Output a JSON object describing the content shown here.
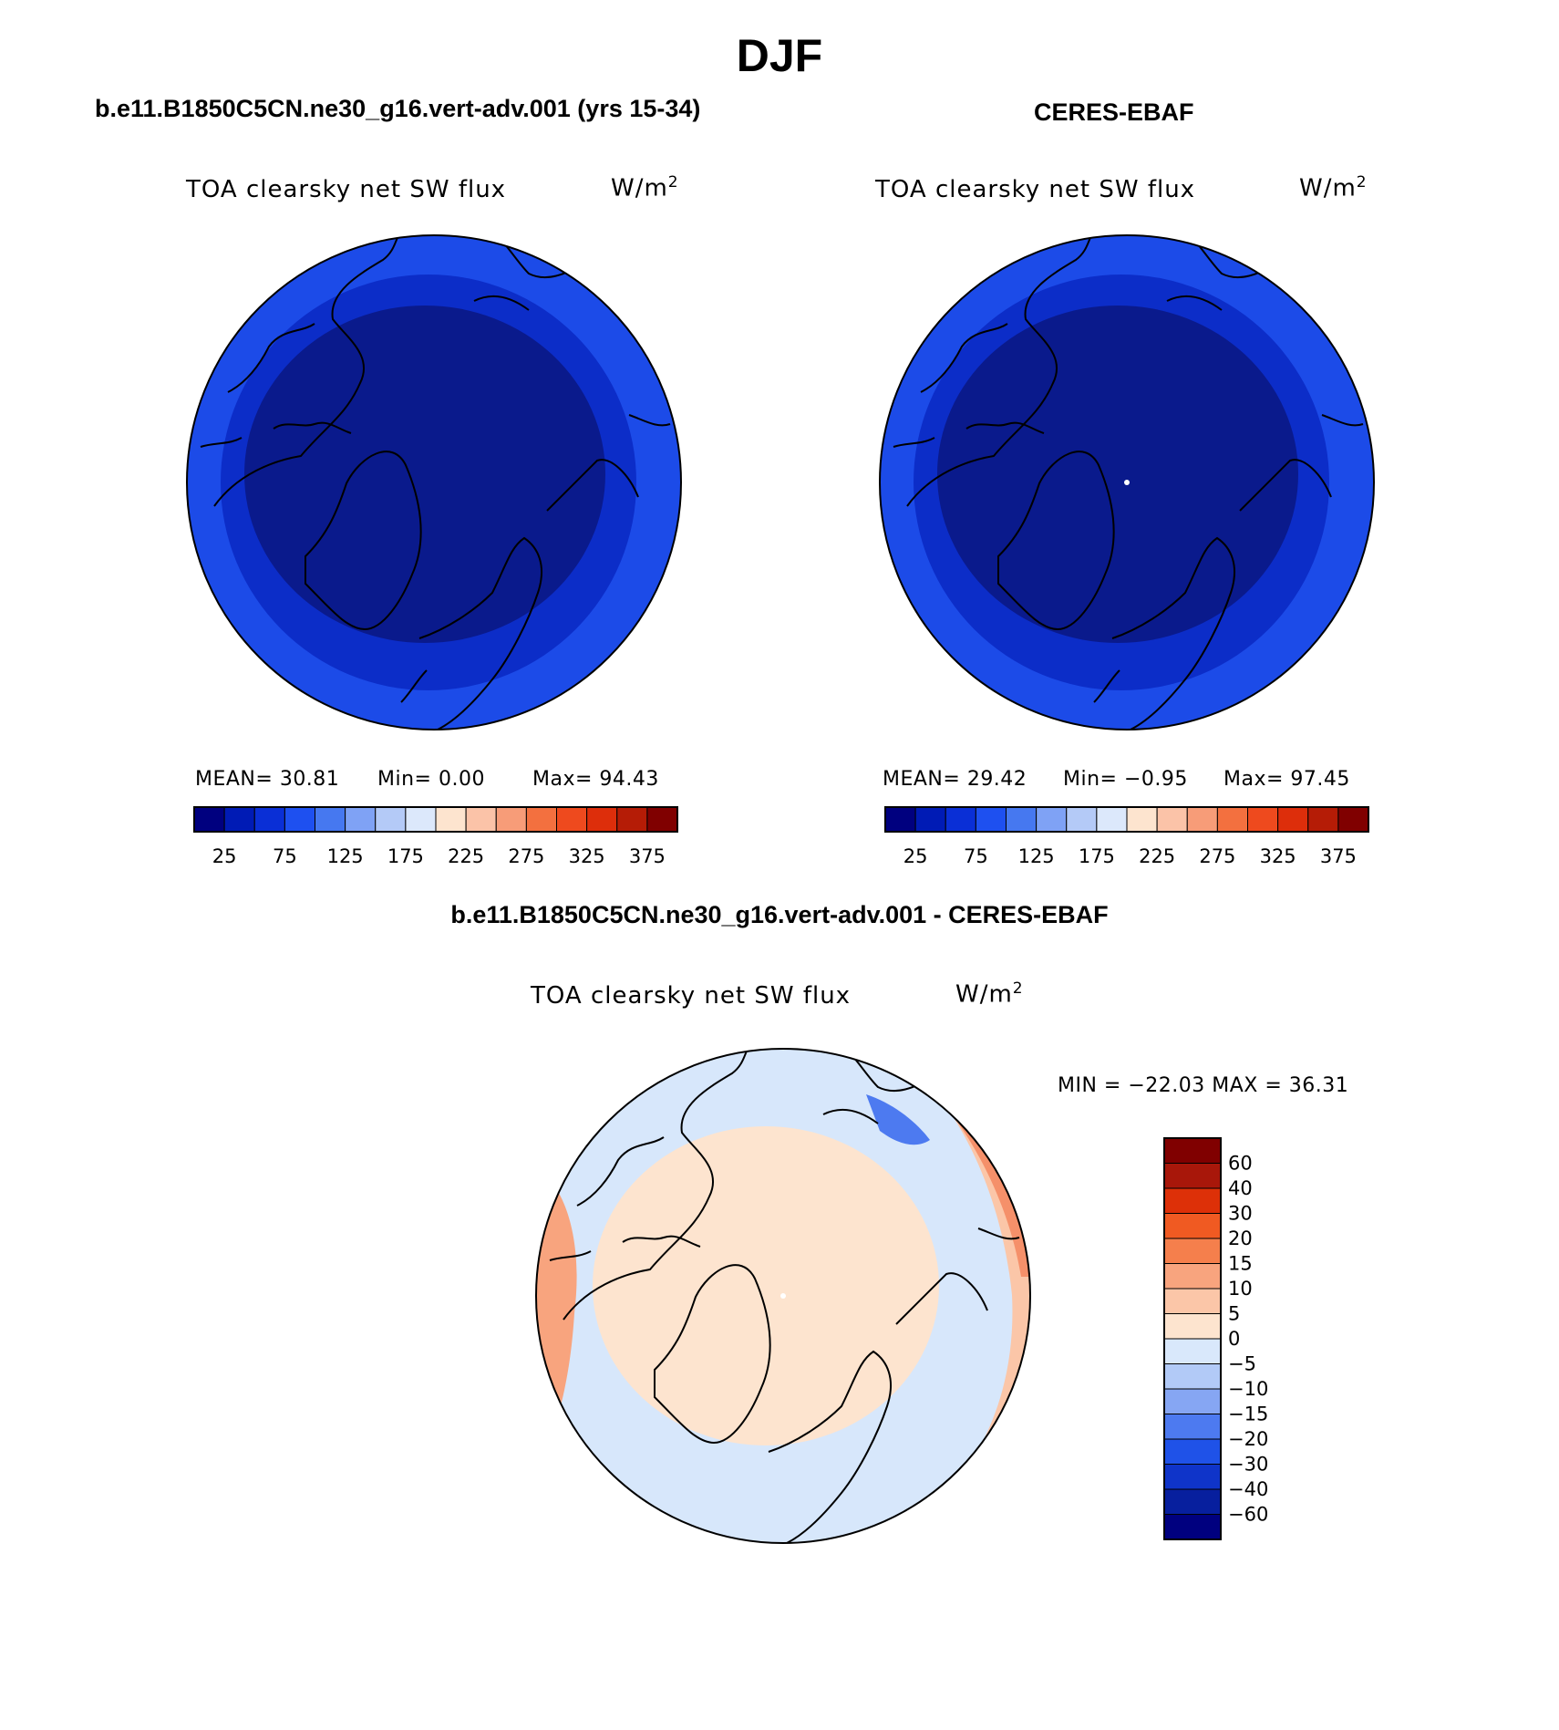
{
  "title": "DJF",
  "panels": [
    {
      "case": "b.e11.B1850C5CN.ne30_g16.vert-adv.001 (yrs 15-34)",
      "variable": "TOA clearsky net SW flux",
      "units_base": "W/m",
      "units_exp": "2",
      "mean": "MEAN=   30.81",
      "min": "Min=    0.00",
      "max": "Max=   94.43",
      "colorbar_labels": [
        "25",
        "75",
        "125",
        "175",
        "225",
        "275",
        "325",
        "375"
      ]
    },
    {
      "case": "CERES-EBAF",
      "variable": "TOA clearsky net SW flux",
      "units_base": "W/m",
      "units_exp": "2",
      "mean": "MEAN=   29.42",
      "min": "Min=   −0.95",
      "max": "Max=   97.45",
      "colorbar_labels": [
        "25",
        "75",
        "125",
        "175",
        "225",
        "275",
        "325",
        "375"
      ]
    }
  ],
  "difference": {
    "case": "b.e11.B1850C5CN.ne30_g16.vert-adv.001 - CERES-EBAF",
    "variable": "TOA clearsky net SW flux",
    "units_base": "W/m",
    "units_exp": "2",
    "minmax": "MIN = −22.03 MAX =   36.31",
    "colorbar_labels": [
      "60",
      "40",
      "30",
      "20",
      "15",
      "10",
      "5",
      "0",
      "−5",
      "−10",
      "−15",
      "−20",
      "−30",
      "−40",
      "−60"
    ]
  },
  "colors": {
    "abs_scale": [
      "#00007f",
      "#001bb5",
      "#0a2fd6",
      "#1e50f0",
      "#4678f0",
      "#7fa2f5",
      "#b4caf7",
      "#dce8fb",
      "#fde4cf",
      "#fbc3a8",
      "#f79c78",
      "#f3703f",
      "#ee4a1e",
      "#dd2e0b",
      "#b51c06",
      "#800000"
    ],
    "diff_scale": [
      "#800000",
      "#a8170a",
      "#dd3008",
      "#f05a22",
      "#f57f4c",
      "#f8a47e",
      "#fbc6a8",
      "#fde4cf",
      "#d9e8fb",
      "#b2caf7",
      "#86a6f3",
      "#4d7af0",
      "#1f52e8",
      "#0f34c9",
      "#071f9e",
      "#00007f"
    ],
    "map_deep": "#0a1a8c",
    "map_mid": "#0c2dc8",
    "map_outer": "#1c4be8",
    "diff_pos": "#fde4cf",
    "diff_neg": "#d7e7fb",
    "diff_warm": "#f5906a"
  }
}
